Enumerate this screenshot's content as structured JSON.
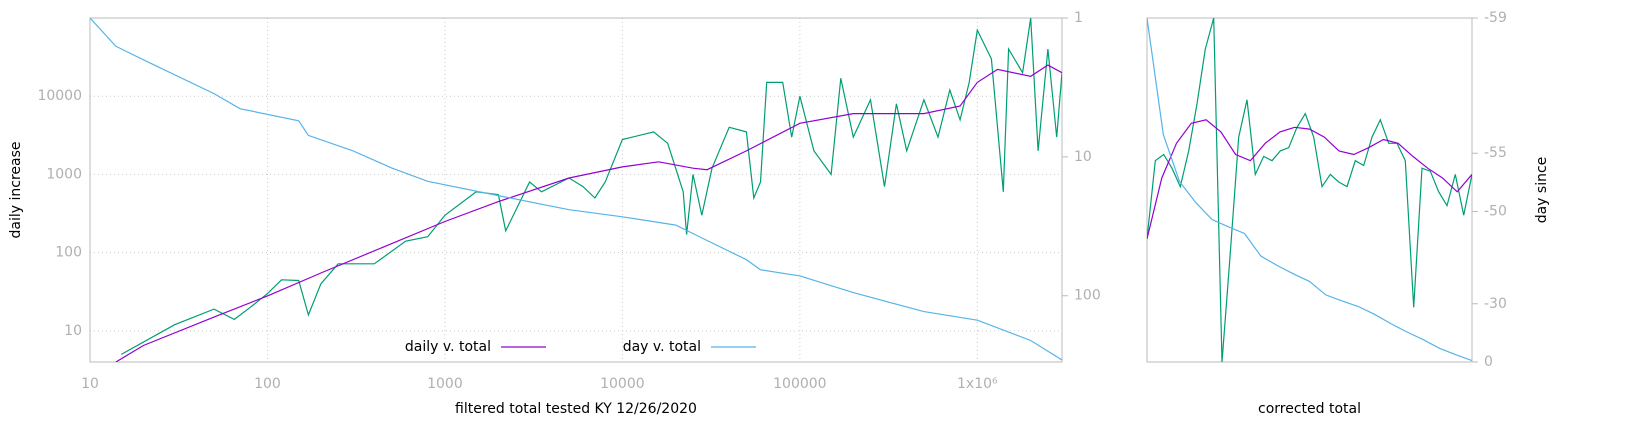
{
  "chart_data": [
    {
      "type": "line",
      "xlabel": "filtered total tested KY 12/26/2020",
      "ylabel": "daily increase",
      "xscale": "log",
      "yscale": "log",
      "y2scale": "log",
      "grid": true,
      "legend": "bottom",
      "xlim": [
        10,
        3000000
      ],
      "ylim": [
        4,
        100000
      ],
      "y2lim": [
        300,
        1
      ],
      "xticks": [
        10,
        100,
        1000,
        10000,
        100000,
        {
          "value": 1000000,
          "label": "1x10⁶"
        }
      ],
      "yticks": [
        10,
        100,
        1000,
        10000
      ],
      "y2ticks": [
        1,
        10,
        100
      ],
      "series": [
        {
          "color": "#009e73",
          "x": [
            15,
            30,
            50,
            65,
            80,
            100,
            120,
            150,
            170,
            200,
            250,
            400,
            600,
            800,
            1000,
            1500,
            2000,
            2200,
            3000,
            3500,
            5000,
            6000,
            7000,
            8000,
            10000,
            15000,
            18000,
            22000,
            23000,
            25000,
            28000,
            32000,
            40000,
            50000,
            55000,
            60000,
            65000,
            80000,
            90000,
            100000,
            120000,
            150000,
            170000,
            200000,
            250000,
            300000,
            350000,
            400000,
            500000,
            600000,
            700000,
            800000,
            900000,
            1000000,
            1200000,
            1400000,
            1500000,
            1800000,
            2000000,
            2200000,
            2500000,
            2800000,
            3000000
          ],
          "values": [
            5,
            12,
            19,
            14,
            20,
            30,
            45,
            44,
            16,
            40,
            72,
            72,
            140,
            160,
            300,
            600,
            550,
            190,
            800,
            600,
            900,
            700,
            500,
            800,
            2800,
            3500,
            2500,
            600,
            170,
            1000,
            300,
            1200,
            4000,
            3500,
            500,
            800,
            15000,
            15000,
            3000,
            10000,
            2000,
            1000,
            17000,
            3000,
            9000,
            700,
            8000,
            2000,
            9000,
            3000,
            12000,
            5000,
            15000,
            70000,
            30000,
            600,
            40000,
            20000,
            100000,
            2000,
            40000,
            3000,
            20000
          ]
        },
        {
          "name": "daily v. total",
          "color": "#9400d3",
          "x": [
            14,
            20,
            50,
            100,
            200,
            500,
            1000,
            2000,
            5000,
            10000,
            16000,
            25000,
            30000,
            50000,
            100000,
            200000,
            500000,
            800000,
            1000000,
            1300000,
            2000000,
            2500000,
            3000000
          ],
          "values": [
            4,
            6.5,
            15,
            28,
            55,
            130,
            250,
            450,
            900,
            1250,
            1450,
            1200,
            1150,
            2000,
            4500,
            6000,
            6000,
            7500,
            15000,
            22000,
            18000,
            25000,
            20000
          ]
        },
        {
          "name": "day v. total",
          "color": "#56b4e9",
          "axis": "y2",
          "x": [
            10,
            14,
            20,
            50,
            70,
            150,
            170,
            300,
            500,
            800,
            2000,
            5000,
            10000,
            20000,
            30000,
            50000,
            60000,
            100000,
            200000,
            500000,
            1000000,
            2000000,
            3000000
          ],
          "values": [
            1,
            1.6,
            2,
            3.5,
            4.5,
            5.5,
            7,
            9,
            12,
            15,
            19,
            24,
            27,
            31,
            40,
            55,
            65,
            72,
            95,
            130,
            150,
            210,
            290
          ]
        }
      ]
    },
    {
      "type": "line",
      "xlabel": "corrected total",
      "y2label": "day since",
      "yscale": "log",
      "y2scale": "log",
      "y2offset": 60,
      "ylim": [
        4,
        100000
      ],
      "y2lim": [
        0,
        -59
      ],
      "y2ticks": [
        -59,
        -55,
        -50,
        -30,
        0
      ],
      "series": [
        {
          "color": "#009e73",
          "values": [
            150,
            1500,
            1800,
            1200,
            700,
            2000,
            8000,
            40000,
            100000,
            4,
            100,
            3000,
            9000,
            1000,
            1700,
            1500,
            2000,
            2200,
            4000,
            6000,
            3000,
            700,
            1000,
            800,
            700,
            1500,
            1300,
            3000,
            5000,
            2500,
            2500,
            1500,
            20,
            1200,
            1100,
            600,
            400,
            1000,
            300,
            1000
          ]
        },
        {
          "color": "#9400d3",
          "values": [
            150,
            900,
            2500,
            4500,
            5000,
            3500,
            1800,
            1500,
            2500,
            3500,
            4000,
            3800,
            3000,
            2000,
            1800,
            2200,
            2800,
            2500,
            1700,
            1200,
            900,
            600,
            1000
          ]
        },
        {
          "color": "#56b4e9",
          "axis": "y2",
          "values": [
            -59,
            -56,
            -53,
            -51,
            -49,
            -48,
            -47,
            -43,
            -41,
            -39,
            -37,
            -33,
            -31,
            -29,
            -26,
            -22,
            -18,
            -14,
            -9,
            -5,
            -1
          ]
        }
      ]
    }
  ]
}
